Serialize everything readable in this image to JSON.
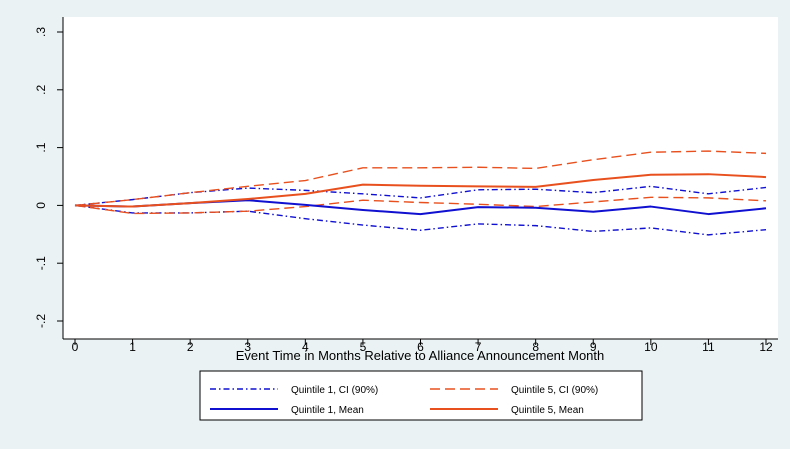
{
  "chart_data": {
    "type": "line",
    "title": "",
    "xlabel": "Event Time in Months Relative to Alliance Announcement Month",
    "ylabel": "",
    "xlim": [
      0,
      12
    ],
    "ylim": [
      -0.2,
      0.3
    ],
    "x": [
      0,
      1,
      2,
      3,
      4,
      5,
      6,
      7,
      8,
      9,
      10,
      11,
      12
    ],
    "x_tick_labels": [
      "0",
      "1",
      "2",
      "3",
      "4",
      "5",
      "6",
      "7",
      "8",
      "9",
      "10",
      "11",
      "12"
    ],
    "y_ticks": [
      -0.2,
      -0.1,
      0,
      0.1,
      0.2,
      0.3
    ],
    "y_tick_labels": [
      "-.2",
      "-.1",
      "0",
      ".1",
      ".2",
      ".3"
    ],
    "grid": false,
    "legend_position": "bottom",
    "series": [
      {
        "name": "Quintile 1, CI (90%)",
        "color": "#1010d0",
        "style": "dash-dot",
        "bands": [
          [
            0,
            0.01,
            0.022,
            0.03,
            0.026,
            0.02,
            0.013,
            0.027,
            0.028,
            0.022,
            0.033,
            0.02,
            0.031
          ],
          [
            0,
            -0.013,
            -0.013,
            -0.01,
            -0.023,
            -0.034,
            -0.043,
            -0.032,
            -0.035,
            -0.045,
            -0.039,
            -0.051,
            -0.042
          ]
        ]
      },
      {
        "name": "Quintile 5, CI (90%)",
        "color": "#e8501e",
        "style": "dashed",
        "bands": [
          [
            0,
            0.01,
            0.022,
            0.033,
            0.043,
            0.065,
            0.065,
            0.066,
            0.064,
            0.079,
            0.092,
            0.094,
            0.09
          ],
          [
            0,
            -0.014,
            -0.013,
            -0.01,
            -0.002,
            0.009,
            0.005,
            0.002,
            -0.002,
            0.006,
            0.014,
            0.013,
            0.008
          ]
        ]
      },
      {
        "name": "Quintile 1, Mean",
        "color": "#1010d0",
        "style": "solid",
        "values": [
          0,
          -0.002,
          0.004,
          0.009,
          0.001,
          -0.008,
          -0.015,
          -0.003,
          -0.004,
          -0.011,
          -0.002,
          -0.015,
          -0.005
        ]
      },
      {
        "name": "Quintile 5, Mean",
        "color": "#e8501e",
        "style": "solid",
        "values": [
          0,
          -0.002,
          0.004,
          0.011,
          0.02,
          0.036,
          0.034,
          0.033,
          0.032,
          0.044,
          0.053,
          0.054,
          0.049
        ]
      }
    ],
    "legend": [
      {
        "label": "Quintile 1, CI (90%)",
        "color": "#1010d0",
        "style": "dash-dot"
      },
      {
        "label": "Quintile 5, CI (90%)",
        "color": "#e8501e",
        "style": "dashed"
      },
      {
        "label": "Quintile 1, Mean",
        "color": "#1010d0",
        "style": "solid"
      },
      {
        "label": "Quintile 5, Mean",
        "color": "#e8501e",
        "style": "solid"
      }
    ],
    "colors": {
      "background": "#eaf2f3",
      "plot_area": "#ffffff",
      "q1": "#1010d0",
      "q5": "#e8501e"
    }
  }
}
